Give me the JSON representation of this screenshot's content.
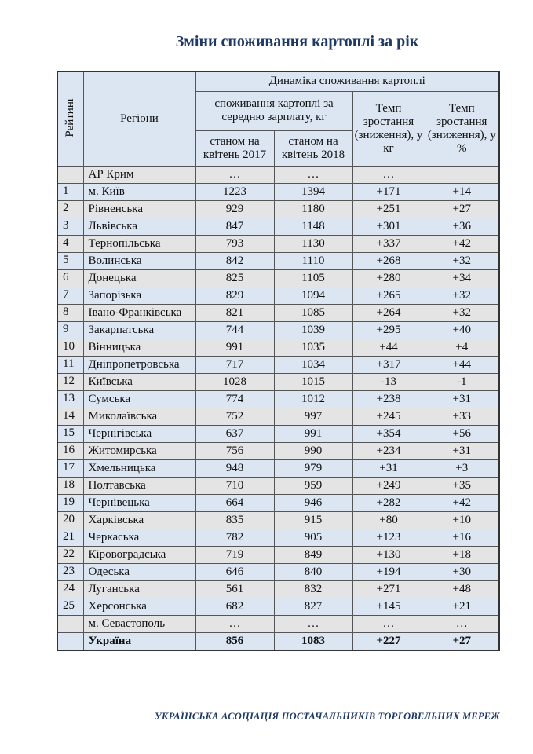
{
  "title": "Зміни споживання картоплі за рік",
  "header": {
    "rating": "Рейтинг",
    "regions": "Регіони",
    "dynamics": "Динаміка споживання картоплі",
    "consumption": "споживання картоплі за середню зарплату, кг",
    "col2017": "станом на квітень 2017",
    "col2018": "станом на квітень 2018",
    "growth_kg": "Темп зростання (зниження), у кг",
    "growth_pct": "Темп зростання (зниження), у %"
  },
  "rows": [
    {
      "rank": "",
      "region": "АР Крим",
      "v2017": "…",
      "v2018": "…",
      "kg": "…",
      "pct": "",
      "gray": true
    },
    {
      "rank": "1",
      "region": "м. Київ",
      "v2017": "1223",
      "v2018": "1394",
      "kg": "+171",
      "pct": "+14"
    },
    {
      "rank": "2",
      "region": "Рівненська",
      "v2017": "929",
      "v2018": "1180",
      "kg": "+251",
      "pct": "+27"
    },
    {
      "rank": "3",
      "region": "Львівська",
      "v2017": "847",
      "v2018": "1148",
      "kg": "+301",
      "pct": "+36"
    },
    {
      "rank": "4",
      "region": "Тернопільська",
      "v2017": "793",
      "v2018": "1130",
      "kg": "+337",
      "pct": "+42"
    },
    {
      "rank": "5",
      "region": "Волинська",
      "v2017": "842",
      "v2018": "1110",
      "kg": "+268",
      "pct": "+32"
    },
    {
      "rank": "6",
      "region": "Донецька",
      "v2017": "825",
      "v2018": "1105",
      "kg": "+280",
      "pct": "+34"
    },
    {
      "rank": "7",
      "region": "Запорізька",
      "v2017": "829",
      "v2018": "1094",
      "kg": "+265",
      "pct": "+32"
    },
    {
      "rank": "8",
      "region": "Івано-Франківська",
      "v2017": "821",
      "v2018": "1085",
      "kg": "+264",
      "pct": "+32"
    },
    {
      "rank": "9",
      "region": "Закарпатська",
      "v2017": "744",
      "v2018": "1039",
      "kg": "+295",
      "pct": "+40"
    },
    {
      "rank": "10",
      "region": "Вінницька",
      "v2017": "991",
      "v2018": "1035",
      "kg": "+44",
      "pct": "+4"
    },
    {
      "rank": "11",
      "region": "Дніпропетровська",
      "v2017": "717",
      "v2018": "1034",
      "kg": "+317",
      "pct": "+44"
    },
    {
      "rank": "12",
      "region": "Київська",
      "v2017": "1028",
      "v2018": "1015",
      "kg": "-13",
      "pct": "-1"
    },
    {
      "rank": "13",
      "region": "Сумська",
      "v2017": "774",
      "v2018": "1012",
      "kg": "+238",
      "pct": "+31"
    },
    {
      "rank": "14",
      "region": "Миколаївська",
      "v2017": "752",
      "v2018": "997",
      "kg": "+245",
      "pct": "+33"
    },
    {
      "rank": "15",
      "region": "Чернігівська",
      "v2017": "637",
      "v2018": "991",
      "kg": "+354",
      "pct": "+56"
    },
    {
      "rank": "16",
      "region": "Житомирська",
      "v2017": "756",
      "v2018": "990",
      "kg": "+234",
      "pct": "+31"
    },
    {
      "rank": "17",
      "region": "Хмельницька",
      "v2017": "948",
      "v2018": "979",
      "kg": "+31",
      "pct": "+3"
    },
    {
      "rank": "18",
      "region": "Полтавська",
      "v2017": "710",
      "v2018": "959",
      "kg": "+249",
      "pct": "+35"
    },
    {
      "rank": "19",
      "region": "Чернівецька",
      "v2017": "664",
      "v2018": "946",
      "kg": "+282",
      "pct": "+42"
    },
    {
      "rank": "20",
      "region": "Харківська",
      "v2017": "835",
      "v2018": "915",
      "kg": "+80",
      "pct": "+10"
    },
    {
      "rank": "21",
      "region": "Черкаська",
      "v2017": "782",
      "v2018": "905",
      "kg": "+123",
      "pct": "+16"
    },
    {
      "rank": "22",
      "region": "Кіровоградська",
      "v2017": "719",
      "v2018": "849",
      "kg": "+130",
      "pct": "+18"
    },
    {
      "rank": "23",
      "region": "Одеська",
      "v2017": "646",
      "v2018": "840",
      "kg": "+194",
      "pct": "+30"
    },
    {
      "rank": "24",
      "region": "Луганська",
      "v2017": "561",
      "v2018": "832",
      "kg": "+271",
      "pct": "+48"
    },
    {
      "rank": "25",
      "region": "Херсонська",
      "v2017": "682",
      "v2018": "827",
      "kg": "+145",
      "pct": "+21"
    },
    {
      "rank": "",
      "region": "м. Севастополь",
      "v2017": "…",
      "v2018": "…",
      "kg": "…",
      "pct": "…",
      "gray": true
    }
  ],
  "total": {
    "region": "Україна",
    "v2017": "856",
    "v2018": "1083",
    "kg": "+227",
    "pct": "+27"
  },
  "footer": "УКРАЇНСЬКА АСОЦІАЦІЯ ПОСТАЧАЛЬНИКІВ ТОРГОВЕЛЬНИХ МЕРЕЖ"
}
